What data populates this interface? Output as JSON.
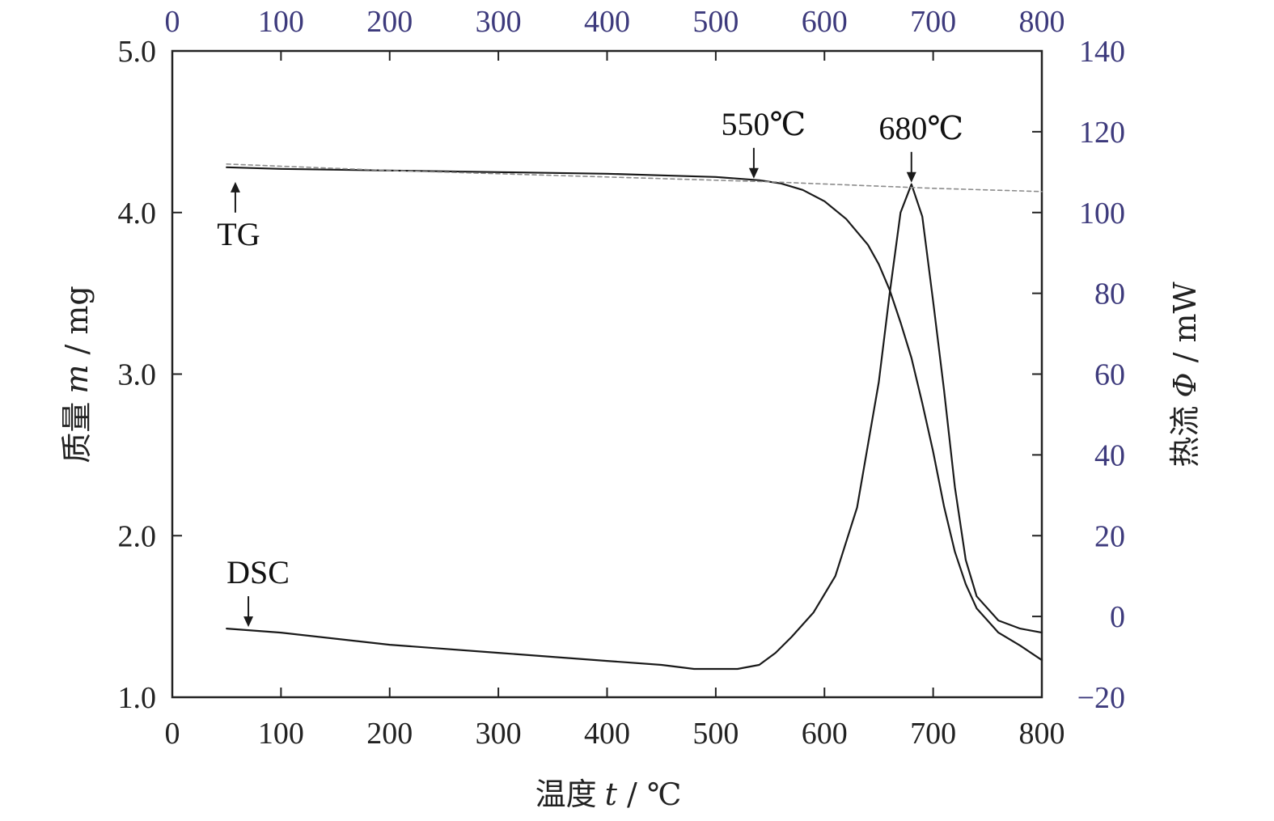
{
  "chart_data": {
    "type": "line",
    "xlabel": {
      "cn": "温度",
      "var": "t",
      "sep": " / ",
      "unit": "℃"
    },
    "ylabel_left": {
      "cn": "质量",
      "var": "m",
      "sep": " / ",
      "unit": "mg"
    },
    "ylabel_right": {
      "cn": "热流",
      "var": "Φ",
      "sep": " / ",
      "unit": "mW"
    },
    "xlim": [
      0,
      800
    ],
    "ylim_left": [
      1.0,
      5.0
    ],
    "ylim_right": [
      -20,
      140
    ],
    "x_ticks": [
      "0",
      "100",
      "200",
      "300",
      "400",
      "500",
      "600",
      "700",
      "800"
    ],
    "x_ticks_top": [
      "0",
      "100",
      "200",
      "300",
      "400",
      "500",
      "600",
      "700",
      "800"
    ],
    "y_left_ticks": [
      "1.0",
      "2.0",
      "3.0",
      "4.0",
      "5.0"
    ],
    "y_right_ticks": [
      "−20",
      "0",
      "20",
      "40",
      "60",
      "80",
      "100",
      "120",
      "140"
    ],
    "colors": {
      "axis": "#222222",
      "curve": "#1a1a1a",
      "baseline": "#8c8c8c",
      "tick_label_black": "#222222",
      "tick_label_secondary": "#3d3a7c"
    },
    "series": [
      {
        "name": "TG",
        "axis": "left",
        "x": [
          50,
          100,
          200,
          300,
          400,
          450,
          500,
          520,
          540,
          560,
          580,
          600,
          620,
          640,
          650,
          660,
          670,
          680,
          690,
          700,
          710,
          720,
          730,
          740,
          760,
          780,
          800
        ],
        "y": [
          4.28,
          4.27,
          4.26,
          4.25,
          4.24,
          4.23,
          4.22,
          4.21,
          4.2,
          4.18,
          4.14,
          4.07,
          3.96,
          3.8,
          3.68,
          3.52,
          3.32,
          3.1,
          2.82,
          2.52,
          2.18,
          1.9,
          1.7,
          1.55,
          1.4,
          1.32,
          1.23
        ]
      },
      {
        "name": "DSC",
        "axis": "right",
        "x": [
          50,
          100,
          200,
          300,
          400,
          450,
          480,
          500,
          520,
          540,
          555,
          570,
          590,
          610,
          630,
          650,
          660,
          670,
          680,
          690,
          700,
          710,
          720,
          730,
          740,
          760,
          780,
          800
        ],
        "y": [
          -3,
          -4,
          -7,
          -9,
          -11,
          -12,
          -13,
          -13,
          -13,
          -12,
          -9,
          -5,
          1,
          10,
          27,
          58,
          80,
          100,
          107,
          99,
          78,
          56,
          32,
          14,
          5,
          -1,
          -3,
          -4
        ]
      },
      {
        "name": "",
        "axis": "left",
        "style": "dashed",
        "x": [
          50,
          200,
          400,
          550,
          700,
          800
        ],
        "y": [
          4.3,
          4.26,
          4.22,
          4.19,
          4.15,
          4.13
        ]
      }
    ],
    "annotations": [
      {
        "text": "550℃",
        "x": 535,
        "y": 4.2,
        "axis": "left",
        "arrow": "down"
      },
      {
        "text": "680℃",
        "x": 680,
        "y": 107,
        "axis": "right",
        "arrow": "down"
      },
      {
        "text": "TG",
        "x": 58,
        "y": 4.28,
        "axis": "left",
        "arrow": "up"
      },
      {
        "text": "DSC",
        "x": 70,
        "y": -3,
        "axis": "right",
        "arrow": "down"
      }
    ]
  }
}
